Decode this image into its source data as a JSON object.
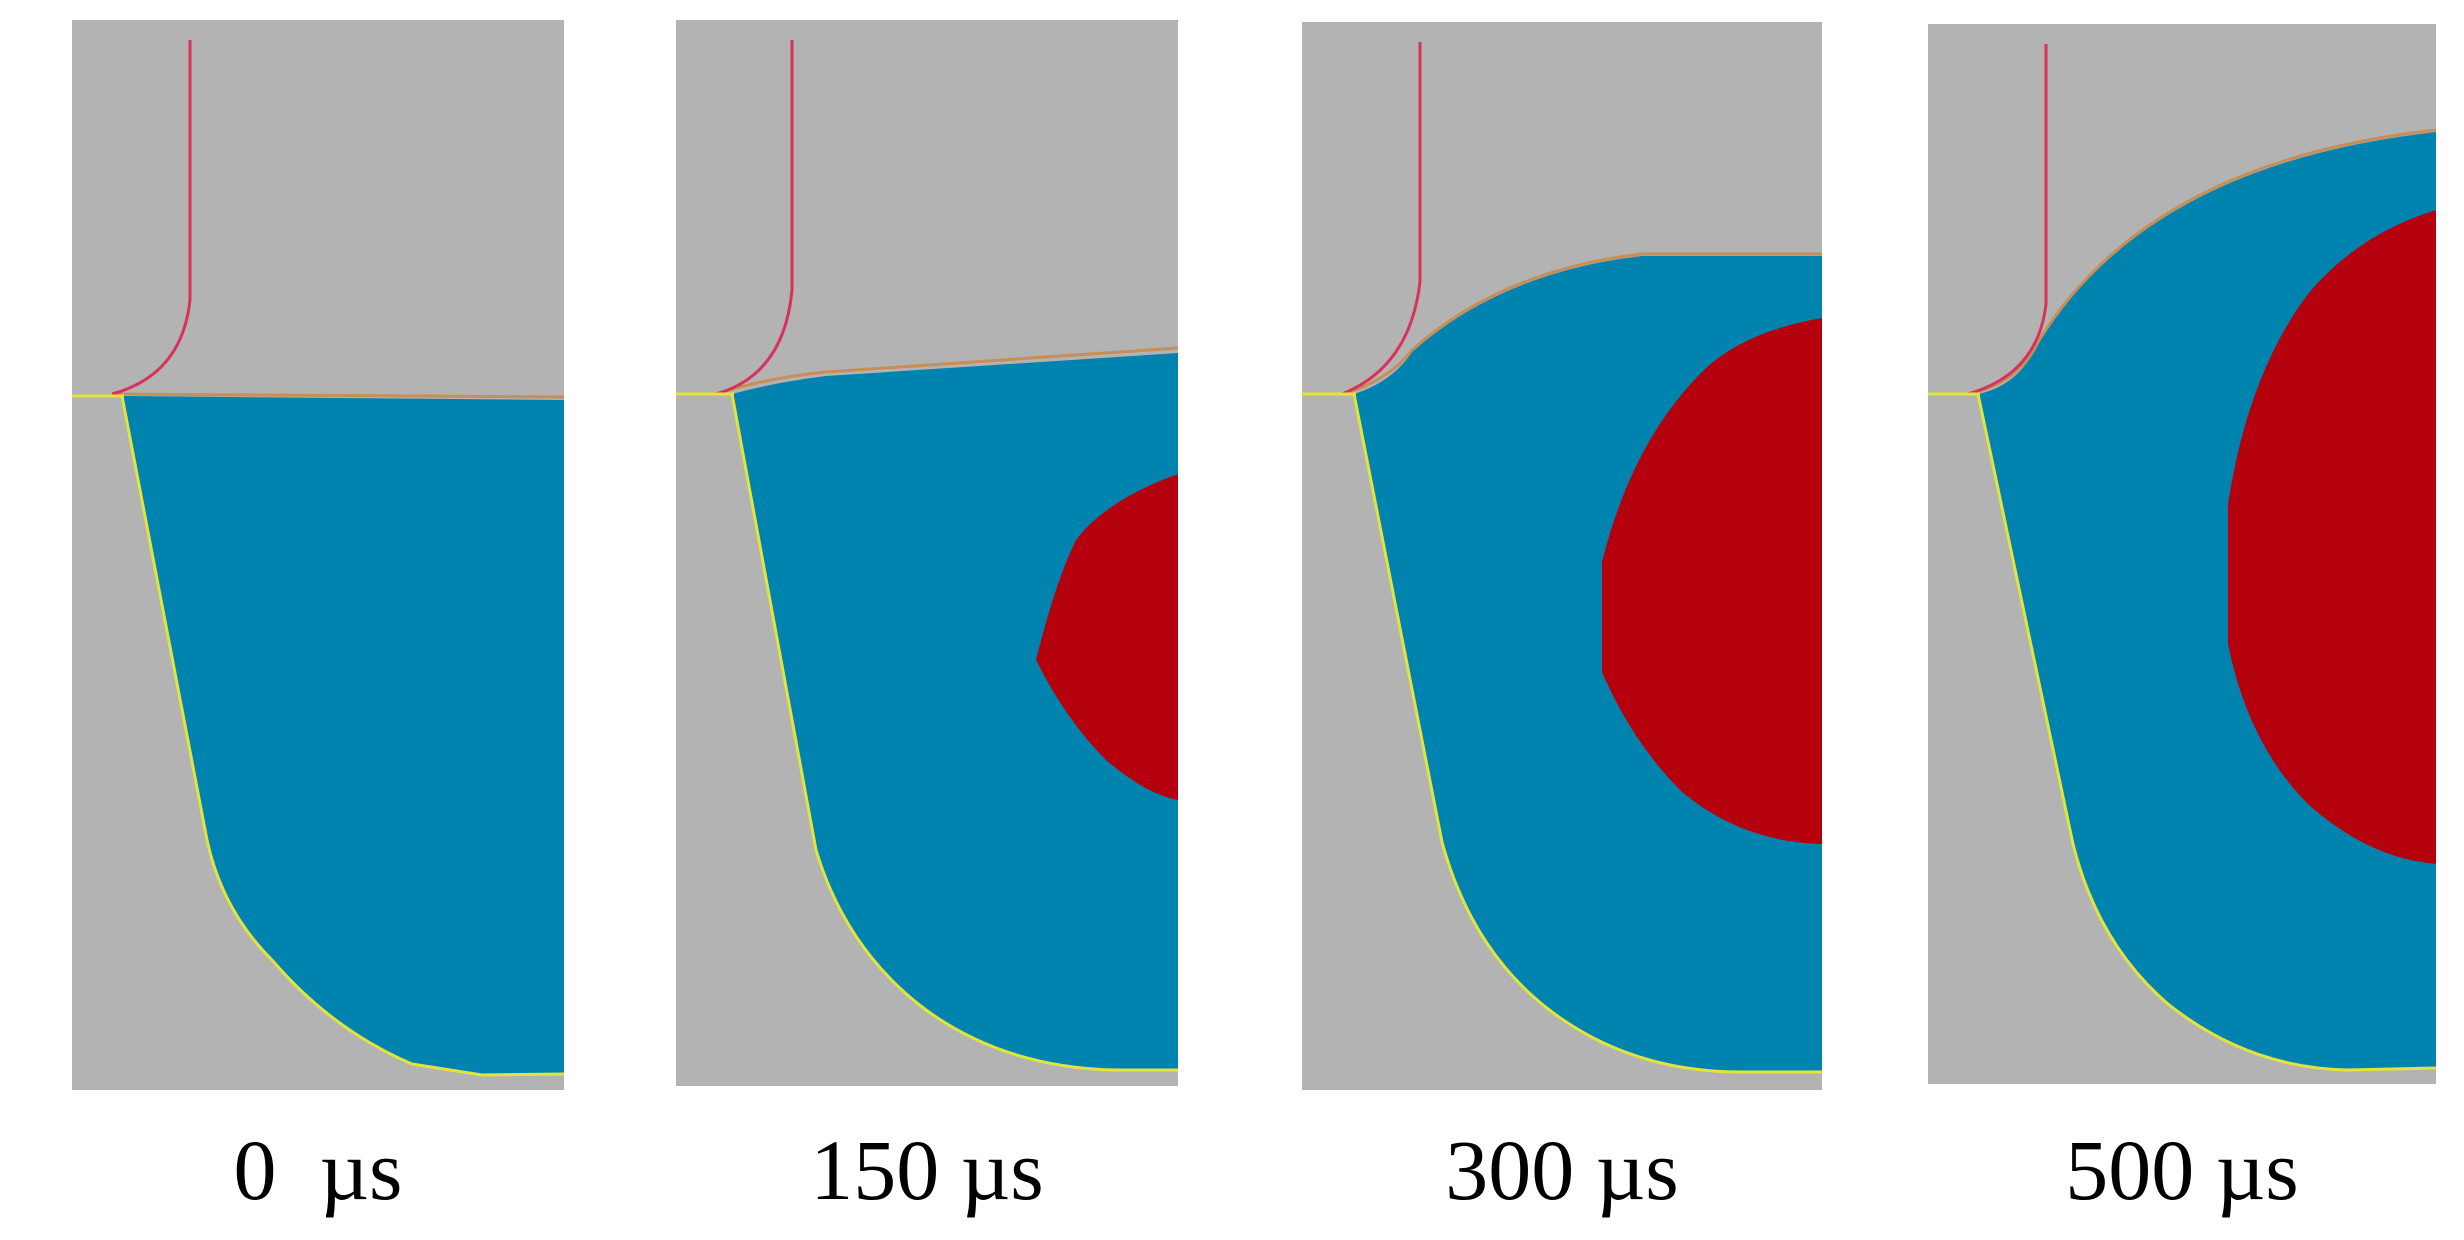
{
  "colors": {
    "background": "#b3b3b3",
    "outer_region": "#0083ae",
    "inner_region": "#b5000e",
    "vertical_curve": "#d7325c",
    "horizontal_line": "#e3e43a",
    "boundary_edge": "#c98e56"
  },
  "panels": [
    {
      "label": "0  µs"
    },
    {
      "label": "150 µs"
    },
    {
      "label": "300 µs"
    },
    {
      "label": "500 µs"
    }
  ]
}
